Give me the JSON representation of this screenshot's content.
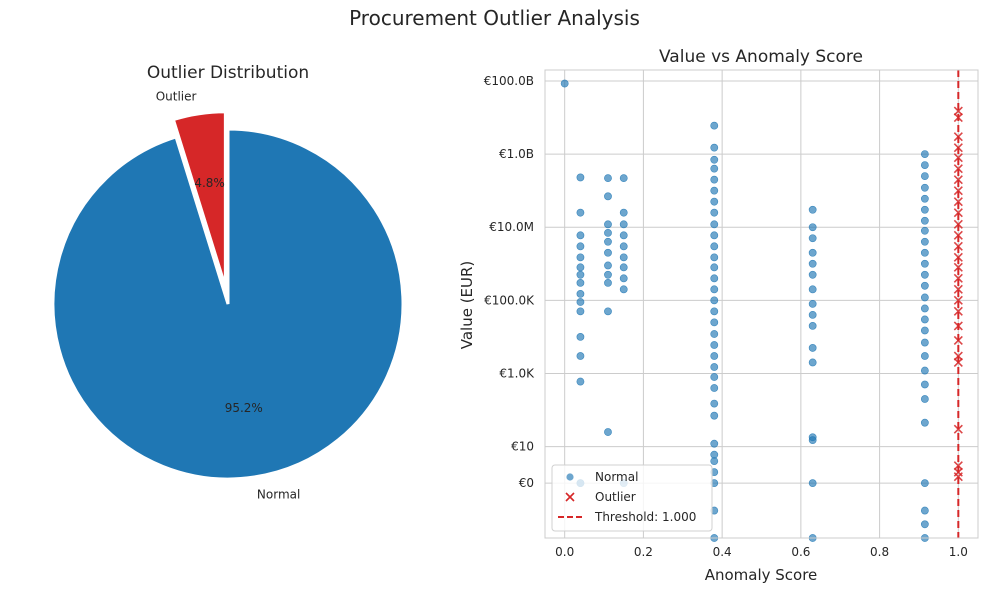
{
  "figure": {
    "title": "Procurement Outlier Analysis"
  },
  "colors": {
    "normal": "#1f77b4",
    "outlier": "#d62728",
    "grid": "#cccccc",
    "axes_edge": "#cccccc",
    "text": "#262626"
  },
  "chart_data": [
    {
      "type": "pie",
      "title": "Outlier Distribution",
      "slices": [
        {
          "label": "Normal",
          "value": 95.2,
          "pct_label": "95.2%",
          "color": "#1f77b4",
          "explode": false
        },
        {
          "label": "Outlier",
          "value": 4.8,
          "pct_label": "4.8%",
          "color": "#d62728",
          "explode": true
        }
      ],
      "start_angle_deg": 90
    },
    {
      "type": "scatter",
      "title": "Value vs Anomaly Score",
      "xlabel": "Anomaly Score",
      "ylabel": "Value (EUR)",
      "xlim": [
        -0.05,
        1.05
      ],
      "xticks": [
        0.0,
        0.2,
        0.4,
        0.6,
        0.8,
        1.0
      ],
      "xtick_labels": [
        "0.0",
        "0.2",
        "0.4",
        "0.6",
        "0.8",
        "1.0"
      ],
      "yscale": "symlog",
      "ylim_log10": [
        -1.5,
        11.3
      ],
      "yticks_log10": [
        11,
        9,
        7,
        5,
        3,
        1,
        0
      ],
      "ytick_labels": [
        "€100.0B",
        "€1.0B",
        "€10.0M",
        "€100.0K",
        "€1.0K",
        "€10",
        "€0"
      ],
      "grid": true,
      "legend_position": "lower left",
      "legend": [
        {
          "label": "Normal",
          "marker": "circle",
          "color": "#1f77b4"
        },
        {
          "label": "Outlier",
          "marker": "x",
          "color": "#d62728"
        },
        {
          "label": "Threshold: 1.000",
          "marker": "dashed-line",
          "color": "#d62728"
        }
      ],
      "threshold": {
        "x": 1.0,
        "label": "Threshold: 1.000"
      },
      "series": [
        {
          "name": "Normal",
          "marker": "circle",
          "color": "#1f77b4",
          "points": [
            {
              "x": 0.0,
              "y": 85000000000
            },
            {
              "x": 0.04,
              "y": 230000000
            },
            {
              "x": 0.04,
              "y": 25000000
            },
            {
              "x": 0.04,
              "y": 6000000
            },
            {
              "x": 0.04,
              "y": 3000000
            },
            {
              "x": 0.04,
              "y": 1500000
            },
            {
              "x": 0.04,
              "y": 800000
            },
            {
              "x": 0.04,
              "y": 500000
            },
            {
              "x": 0.04,
              "y": 300000
            },
            {
              "x": 0.04,
              "y": 150000
            },
            {
              "x": 0.04,
              "y": 90000
            },
            {
              "x": 0.04,
              "y": 50000
            },
            {
              "x": 0.04,
              "y": 10000
            },
            {
              "x": 0.04,
              "y": 3000
            },
            {
              "x": 0.04,
              "y": 600
            },
            {
              "x": 0.04,
              "y": 1
            },
            {
              "x": 0.04,
              "y": 1
            },
            {
              "x": 0.11,
              "y": 220000000
            },
            {
              "x": 0.11,
              "y": 70000000
            },
            {
              "x": 0.11,
              "y": 12000000
            },
            {
              "x": 0.11,
              "y": 7000000
            },
            {
              "x": 0.11,
              "y": 4000000
            },
            {
              "x": 0.11,
              "y": 2000000
            },
            {
              "x": 0.11,
              "y": 900000
            },
            {
              "x": 0.11,
              "y": 500000
            },
            {
              "x": 0.11,
              "y": 300000
            },
            {
              "x": 0.11,
              "y": 50000
            },
            {
              "x": 0.11,
              "y": 25
            },
            {
              "x": 0.15,
              "y": 220000000
            },
            {
              "x": 0.15,
              "y": 25000000
            },
            {
              "x": 0.15,
              "y": 12000000
            },
            {
              "x": 0.15,
              "y": 6000000
            },
            {
              "x": 0.15,
              "y": 3000000
            },
            {
              "x": 0.15,
              "y": 1500000
            },
            {
              "x": 0.15,
              "y": 800000
            },
            {
              "x": 0.15,
              "y": 400000
            },
            {
              "x": 0.15,
              "y": 200000
            },
            {
              "x": 0.15,
              "y": 1
            },
            {
              "x": 0.38,
              "y": 6000000000
            },
            {
              "x": 0.38,
              "y": 1500000000
            },
            {
              "x": 0.38,
              "y": 700000000
            },
            {
              "x": 0.38,
              "y": 400000000
            },
            {
              "x": 0.38,
              "y": 200000000
            },
            {
              "x": 0.38,
              "y": 100000000
            },
            {
              "x": 0.38,
              "y": 50000000
            },
            {
              "x": 0.38,
              "y": 25000000
            },
            {
              "x": 0.38,
              "y": 12000000
            },
            {
              "x": 0.38,
              "y": 6000000
            },
            {
              "x": 0.38,
              "y": 3000000
            },
            {
              "x": 0.38,
              "y": 1500000
            },
            {
              "x": 0.38,
              "y": 800000
            },
            {
              "x": 0.38,
              "y": 400000
            },
            {
              "x": 0.38,
              "y": 200000
            },
            {
              "x": 0.38,
              "y": 100000
            },
            {
              "x": 0.38,
              "y": 50000
            },
            {
              "x": 0.38,
              "y": 25000
            },
            {
              "x": 0.38,
              "y": 12000
            },
            {
              "x": 0.38,
              "y": 6000
            },
            {
              "x": 0.38,
              "y": 3000
            },
            {
              "x": 0.38,
              "y": 1500
            },
            {
              "x": 0.38,
              "y": 800
            },
            {
              "x": 0.38,
              "y": 400
            },
            {
              "x": 0.38,
              "y": 150
            },
            {
              "x": 0.38,
              "y": 70
            },
            {
              "x": 0.38,
              "y": 12
            },
            {
              "x": 0.38,
              "y": 6
            },
            {
              "x": 0.38,
              "y": 4
            },
            {
              "x": 0.38,
              "y": 2
            },
            {
              "x": 0.38,
              "y": 1
            },
            {
              "x": 0.38,
              "y": 0
            },
            {
              "x": 0.38,
              "y": -1
            },
            {
              "x": 0.63,
              "y": 30000000
            },
            {
              "x": 0.63,
              "y": 10000000
            },
            {
              "x": 0.63,
              "y": 5000000
            },
            {
              "x": 0.63,
              "y": 2000000
            },
            {
              "x": 0.63,
              "y": 1000000
            },
            {
              "x": 0.63,
              "y": 500000
            },
            {
              "x": 0.63,
              "y": 200000
            },
            {
              "x": 0.63,
              "y": 80000
            },
            {
              "x": 0.63,
              "y": 40000
            },
            {
              "x": 0.63,
              "y": 20000
            },
            {
              "x": 0.63,
              "y": 5000
            },
            {
              "x": 0.63,
              "y": 2000
            },
            {
              "x": 0.63,
              "y": 18
            },
            {
              "x": 0.63,
              "y": 15
            },
            {
              "x": 0.63,
              "y": 1
            },
            {
              "x": 0.63,
              "y": -1
            },
            {
              "x": 0.915,
              "y": 1000000000
            },
            {
              "x": 0.915,
              "y": 500000000
            },
            {
              "x": 0.915,
              "y": 250000000
            },
            {
              "x": 0.915,
              "y": 120000000
            },
            {
              "x": 0.915,
              "y": 60000000
            },
            {
              "x": 0.915,
              "y": 30000000
            },
            {
              "x": 0.915,
              "y": 15000000
            },
            {
              "x": 0.915,
              "y": 8000000
            },
            {
              "x": 0.915,
              "y": 4000000
            },
            {
              "x": 0.915,
              "y": 2000000
            },
            {
              "x": 0.915,
              "y": 1000000
            },
            {
              "x": 0.915,
              "y": 500000
            },
            {
              "x": 0.915,
              "y": 250000
            },
            {
              "x": 0.915,
              "y": 120000
            },
            {
              "x": 0.915,
              "y": 60000
            },
            {
              "x": 0.915,
              "y": 30000
            },
            {
              "x": 0.915,
              "y": 15000
            },
            {
              "x": 0.915,
              "y": 7000
            },
            {
              "x": 0.915,
              "y": 3000
            },
            {
              "x": 0.915,
              "y": 1200
            },
            {
              "x": 0.915,
              "y": 500
            },
            {
              "x": 0.915,
              "y": 200
            },
            {
              "x": 0.915,
              "y": 45
            },
            {
              "x": 0.915,
              "y": 1
            },
            {
              "x": 0.915,
              "y": 0
            },
            {
              "x": 0.915,
              "y": -0.5
            },
            {
              "x": 0.915,
              "y": -1
            }
          ]
        },
        {
          "name": "Outlier",
          "marker": "x",
          "color": "#d62728",
          "points": [
            {
              "x": 1.0,
              "y": 15000000000
            },
            {
              "x": 1.0,
              "y": 10000000000
            },
            {
              "x": 1.0,
              "y": 3000000000
            },
            {
              "x": 1.0,
              "y": 1500000000
            },
            {
              "x": 1.0,
              "y": 800000000
            },
            {
              "x": 1.0,
              "y": 400000000
            },
            {
              "x": 1.0,
              "y": 200000000
            },
            {
              "x": 1.0,
              "y": 100000000
            },
            {
              "x": 1.0,
              "y": 50000000
            },
            {
              "x": 1.0,
              "y": 25000000
            },
            {
              "x": 1.0,
              "y": 12000000
            },
            {
              "x": 1.0,
              "y": 6000000
            },
            {
              "x": 1.0,
              "y": 3000000
            },
            {
              "x": 1.0,
              "y": 1500000
            },
            {
              "x": 1.0,
              "y": 800000
            },
            {
              "x": 1.0,
              "y": 400000
            },
            {
              "x": 1.0,
              "y": 200000
            },
            {
              "x": 1.0,
              "y": 100000
            },
            {
              "x": 1.0,
              "y": 50000
            },
            {
              "x": 1.0,
              "y": 20000
            },
            {
              "x": 1.0,
              "y": 8000
            },
            {
              "x": 1.0,
              "y": 3000
            },
            {
              "x": 1.0,
              "y": 2000
            },
            {
              "x": 1.0,
              "y": 30
            },
            {
              "x": 1.0,
              "y": 3
            },
            {
              "x": 1.0,
              "y": 2
            },
            {
              "x": 1.0,
              "y": 1.5
            }
          ]
        }
      ]
    }
  ]
}
